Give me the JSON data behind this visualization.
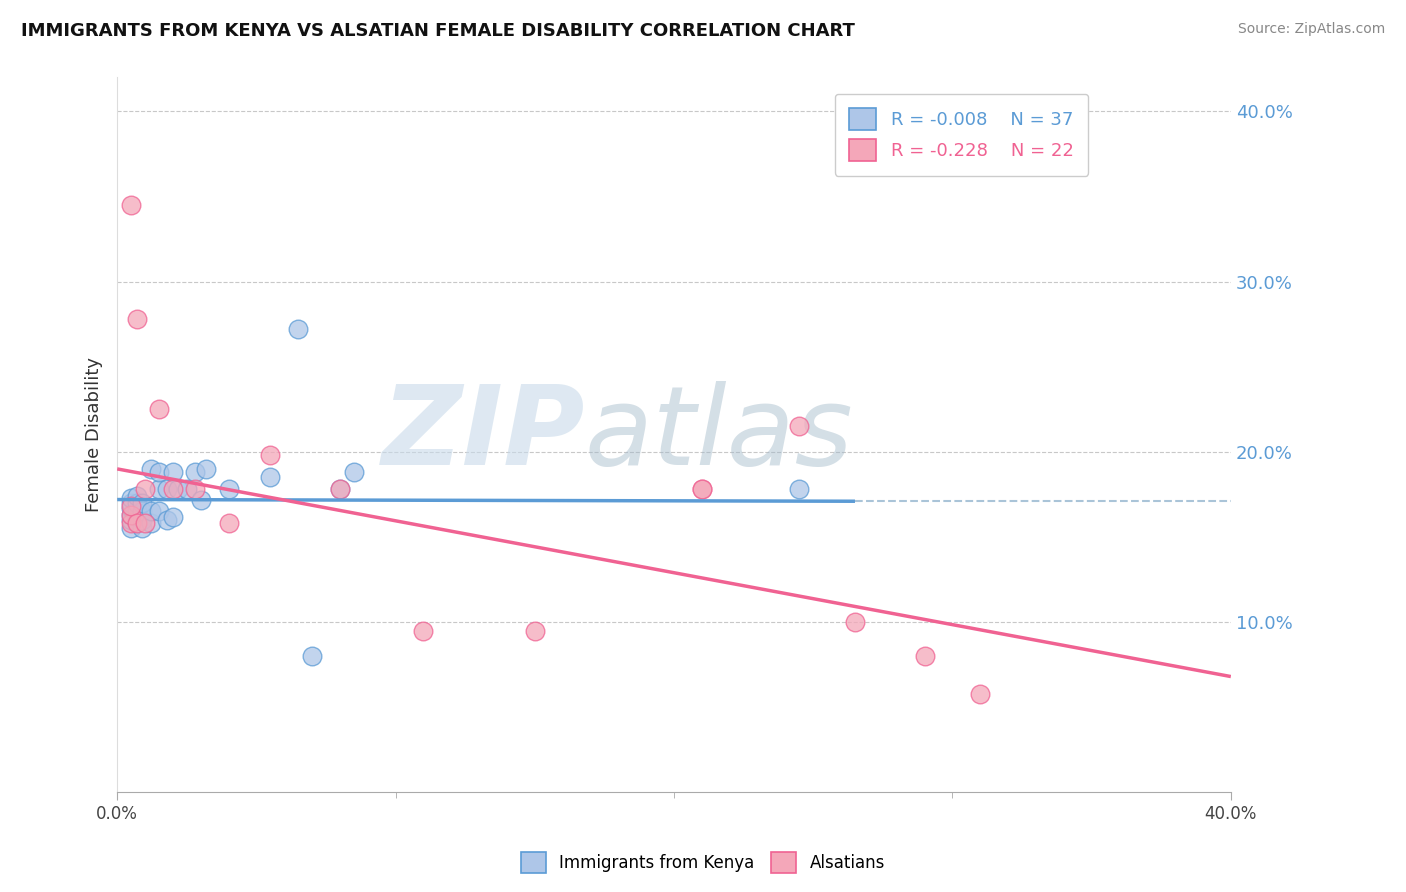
{
  "title": "IMMIGRANTS FROM KENYA VS ALSATIAN FEMALE DISABILITY CORRELATION CHART",
  "source": "Source: ZipAtlas.com",
  "ylabel": "Female Disability",
  "legend_blue_r": "-0.008",
  "legend_blue_n": "37",
  "legend_pink_r": "-0.228",
  "legend_pink_n": "22",
  "legend_blue_label": "Immigrants from Kenya",
  "legend_pink_label": "Alsatians",
  "xlim": [
    0.0,
    0.4
  ],
  "ylim": [
    0.0,
    0.42
  ],
  "yticks": [
    0.1,
    0.2,
    0.3,
    0.4
  ],
  "ytick_labels": [
    "10.0%",
    "20.0%",
    "30.0%",
    "40.0%"
  ],
  "background_color": "#ffffff",
  "grid_color": "#c8c8c8",
  "watermark_zip": "ZIP",
  "watermark_atlas": "atlas",
  "blue_scatter_x": [
    0.005,
    0.005,
    0.005,
    0.005,
    0.005,
    0.005,
    0.007,
    0.007,
    0.007,
    0.007,
    0.007,
    0.009,
    0.009,
    0.009,
    0.009,
    0.012,
    0.012,
    0.012,
    0.015,
    0.015,
    0.015,
    0.018,
    0.018,
    0.02,
    0.02,
    0.022,
    0.025,
    0.028,
    0.03,
    0.032,
    0.04,
    0.055,
    0.065,
    0.08,
    0.085,
    0.245,
    0.07
  ],
  "blue_scatter_y": [
    0.155,
    0.16,
    0.163,
    0.167,
    0.17,
    0.173,
    0.158,
    0.162,
    0.166,
    0.17,
    0.174,
    0.155,
    0.16,
    0.165,
    0.17,
    0.158,
    0.165,
    0.19,
    0.165,
    0.178,
    0.188,
    0.16,
    0.178,
    0.162,
    0.188,
    0.178,
    0.178,
    0.188,
    0.172,
    0.19,
    0.178,
    0.185,
    0.272,
    0.178,
    0.188,
    0.178,
    0.08
  ],
  "pink_scatter_x": [
    0.005,
    0.005,
    0.005,
    0.005,
    0.007,
    0.007,
    0.01,
    0.01,
    0.015,
    0.02,
    0.028,
    0.04,
    0.055,
    0.08,
    0.11,
    0.15,
    0.21,
    0.21,
    0.245,
    0.265,
    0.29,
    0.31
  ],
  "pink_scatter_y": [
    0.158,
    0.163,
    0.168,
    0.345,
    0.158,
    0.278,
    0.158,
    0.178,
    0.225,
    0.178,
    0.178,
    0.158,
    0.198,
    0.178,
    0.095,
    0.095,
    0.178,
    0.178,
    0.215,
    0.1,
    0.08,
    0.058
  ],
  "blue_line_color": "#5b9bd5",
  "pink_line_color": "#f06292",
  "scatter_blue_facecolor": "#aec6e8",
  "scatter_pink_facecolor": "#f4a7b9",
  "dashed_line_color": "#aac4d8",
  "blue_trend_x": [
    0.0,
    0.265
  ],
  "blue_trend_y": [
    0.172,
    0.171
  ],
  "pink_trend_x": [
    0.0,
    0.4
  ],
  "pink_trend_y": [
    0.19,
    0.068
  ],
  "dashed_line_x_start": 0.265,
  "dashed_line_x_end": 0.4,
  "dashed_line_y": 0.171
}
